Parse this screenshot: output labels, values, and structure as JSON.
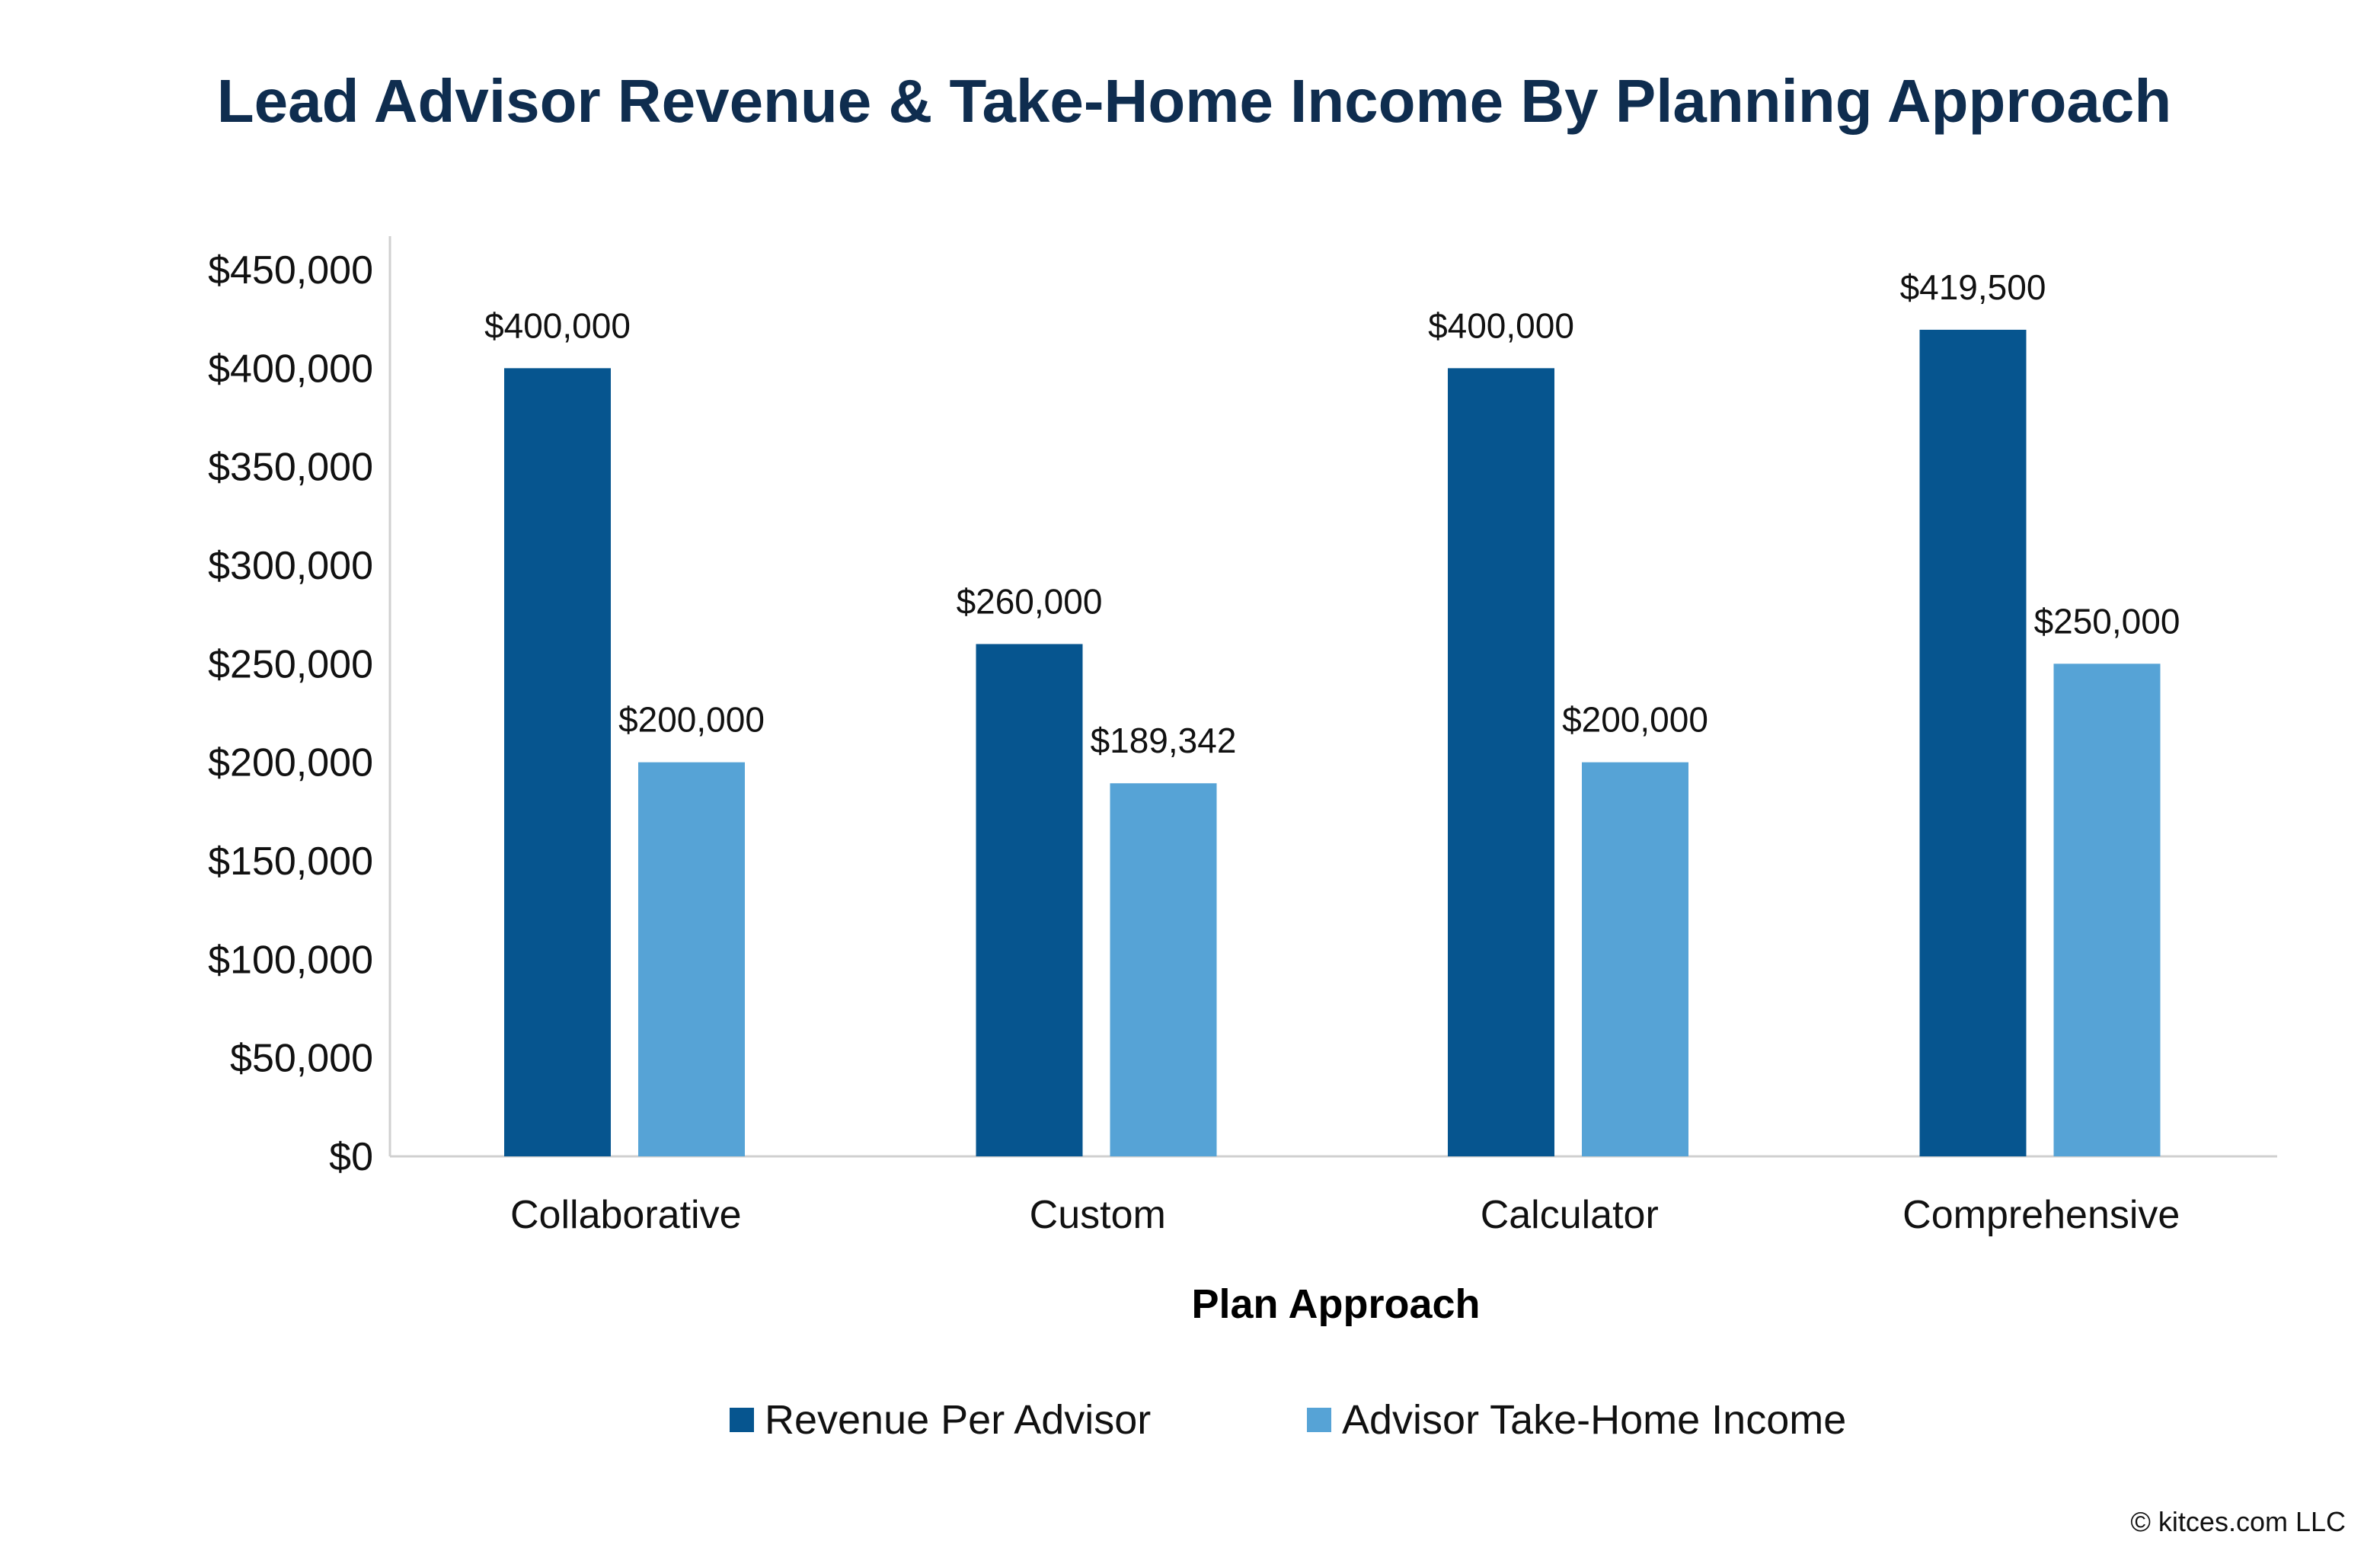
{
  "chart_data": {
    "type": "bar",
    "title": "Lead Advisor Revenue & Take-Home Income By Planning Approach",
    "xlabel": "Plan Approach",
    "ylabel": "",
    "categories": [
      "Collaborative",
      "Custom",
      "Calculator",
      "Comprehensive"
    ],
    "series": [
      {
        "name": "Revenue Per Advisor",
        "color": "#06558f",
        "values": [
          400000,
          260000,
          400000,
          419500
        ],
        "labels": [
          "$400,000",
          "$260,000",
          "$400,000",
          "$419,500"
        ]
      },
      {
        "name": "Advisor Take-Home Income",
        "color": "#56a3d6",
        "values": [
          200000,
          189342,
          200000,
          250000
        ],
        "labels": [
          "$200,000",
          "$189,342",
          "$200,000",
          "$250,000"
        ]
      }
    ],
    "ylim": [
      0,
      450000
    ],
    "yticks": [
      0,
      50000,
      100000,
      150000,
      200000,
      250000,
      300000,
      350000,
      400000,
      450000
    ],
    "ytick_labels": [
      "$0",
      "$50,000",
      "$100,000",
      "$150,000",
      "$200,000",
      "$250,000",
      "$300,000",
      "$350,000",
      "$400,000",
      "$450,000"
    ],
    "grid": false,
    "legend": "bottom"
  },
  "copyright": "© kitces.com LLC"
}
